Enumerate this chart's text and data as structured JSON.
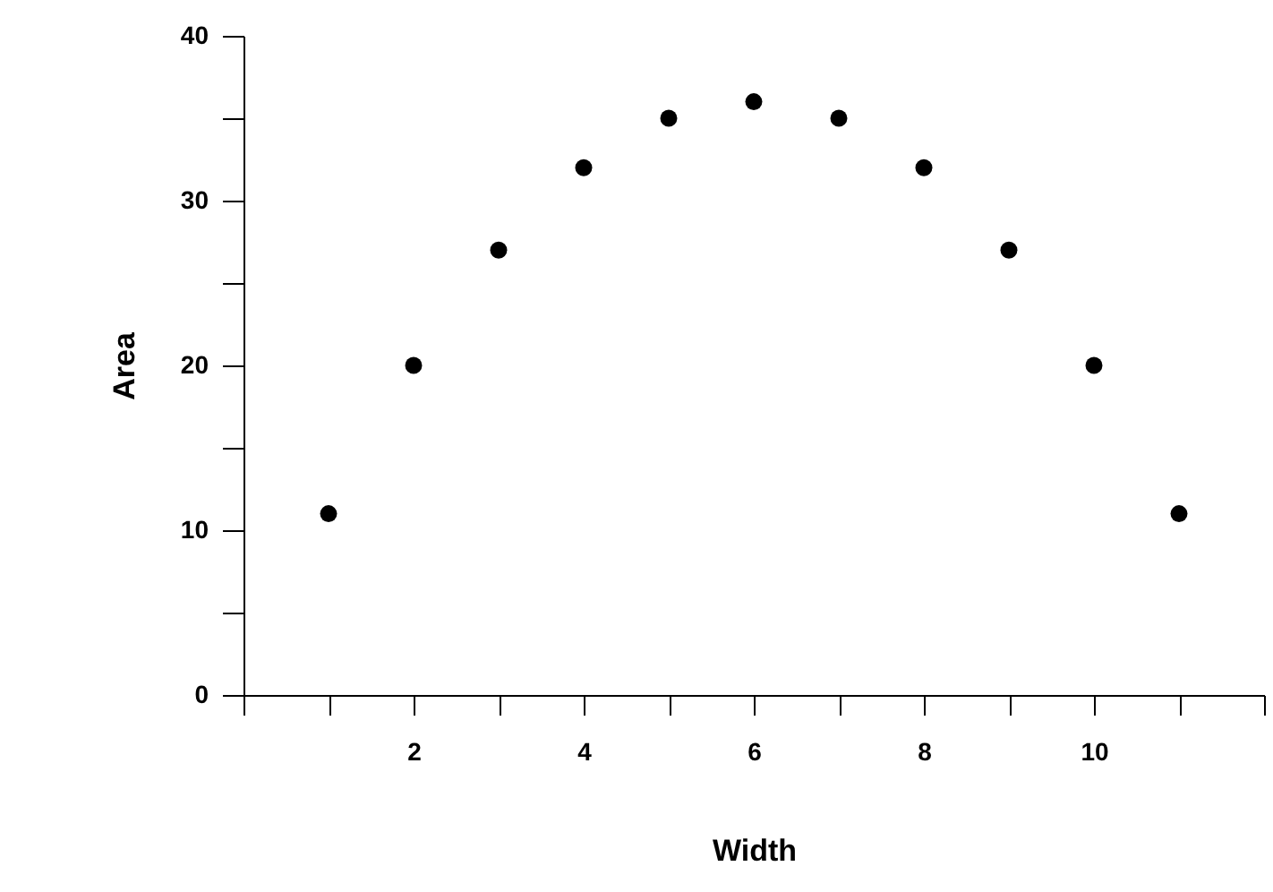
{
  "chart_data": {
    "type": "scatter",
    "xlabel": "Width",
    "ylabel": "Area",
    "x": [
      1,
      2,
      3,
      4,
      5,
      6,
      7,
      8,
      9,
      10,
      11
    ],
    "series": [
      {
        "color": "#000000",
        "values": [
          11,
          20,
          27,
          32,
          35,
          36,
          35,
          32,
          27,
          20,
          11
        ]
      }
    ],
    "xlim": [
      0,
      12
    ],
    "xticks": [
      {
        "value": 0,
        "label": null
      },
      {
        "value": 1,
        "label": null
      },
      2,
      {
        "value": 3,
        "label": null
      },
      4,
      {
        "value": 5,
        "label": null
      },
      6,
      {
        "value": 7,
        "label": null
      },
      8,
      {
        "value": 9,
        "label": null
      },
      10,
      {
        "value": 11,
        "label": null
      },
      {
        "value": 12,
        "label": null
      }
    ],
    "ylim": [
      0,
      40
    ],
    "yticks": [
      0,
      {
        "value": 5,
        "label": null
      },
      10,
      {
        "value": 15,
        "label": null
      },
      20,
      {
        "value": 25,
        "label": null
      },
      30,
      {
        "value": 35,
        "label": null
      },
      40
    ],
    "grid": false
  }
}
